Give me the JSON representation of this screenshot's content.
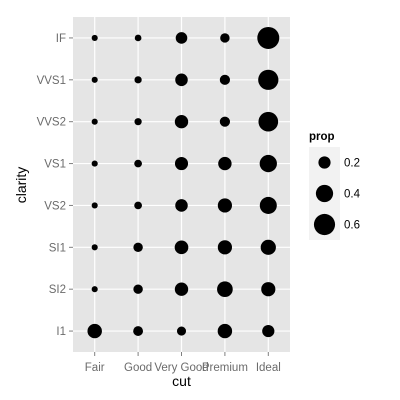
{
  "chart_data": {
    "type": "scatter",
    "x_label": "cut",
    "y_label": "clarity",
    "x_categories": [
      "Fair",
      "Good",
      "Very Good",
      "Premium",
      "Ideal"
    ],
    "y_categories": [
      "I1",
      "SI2",
      "SI1",
      "VS2",
      "VS1",
      "VVS2",
      "VVS1",
      "IF"
    ],
    "size_variable": "prop",
    "grid": true,
    "legend": {
      "title": "prop",
      "placement": "right",
      "entries": [
        {
          "label": "0.2",
          "value": 0.2
        },
        {
          "label": "0.4",
          "value": 0.4
        },
        {
          "label": "0.6",
          "value": 0.6
        }
      ]
    },
    "points": [
      {
        "cut": "Fair",
        "clarity": "IF",
        "prop": 0.05
      },
      {
        "cut": "Good",
        "clarity": "IF",
        "prop": 0.06
      },
      {
        "cut": "Very Good",
        "clarity": "IF",
        "prop": 0.18
      },
      {
        "cut": "Premium",
        "clarity": "IF",
        "prop": 0.12
      },
      {
        "cut": "Ideal",
        "clarity": "IF",
        "prop": 0.65
      },
      {
        "cut": "Fair",
        "clarity": "VVS1",
        "prop": 0.05
      },
      {
        "cut": "Good",
        "clarity": "VVS1",
        "prop": 0.07
      },
      {
        "cut": "Very Good",
        "clarity": "VVS1",
        "prop": 0.21
      },
      {
        "cut": "Premium",
        "clarity": "VVS1",
        "prop": 0.14
      },
      {
        "cut": "Ideal",
        "clarity": "VVS1",
        "prop": 0.55
      },
      {
        "cut": "Fair",
        "clarity": "VVS2",
        "prop": 0.05
      },
      {
        "cut": "Good",
        "clarity": "VVS2",
        "prop": 0.07
      },
      {
        "cut": "Very Good",
        "clarity": "VVS2",
        "prop": 0.24
      },
      {
        "cut": "Premium",
        "clarity": "VVS2",
        "prop": 0.14
      },
      {
        "cut": "Ideal",
        "clarity": "VVS2",
        "prop": 0.52
      },
      {
        "cut": "Fair",
        "clarity": "VS1",
        "prop": 0.05
      },
      {
        "cut": "Good",
        "clarity": "VS1",
        "prop": 0.08
      },
      {
        "cut": "Very Good",
        "clarity": "VS1",
        "prop": 0.23
      },
      {
        "cut": "Premium",
        "clarity": "VS1",
        "prop": 0.24
      },
      {
        "cut": "Ideal",
        "clarity": "VS1",
        "prop": 0.4
      },
      {
        "cut": "Fair",
        "clarity": "VS2",
        "prop": 0.05
      },
      {
        "cut": "Good",
        "clarity": "VS2",
        "prop": 0.08
      },
      {
        "cut": "Very Good",
        "clarity": "VS2",
        "prop": 0.21
      },
      {
        "cut": "Premium",
        "clarity": "VS2",
        "prop": 0.27
      },
      {
        "cut": "Ideal",
        "clarity": "VS2",
        "prop": 0.39
      },
      {
        "cut": "Fair",
        "clarity": "SI1",
        "prop": 0.05
      },
      {
        "cut": "Good",
        "clarity": "SI1",
        "prop": 0.12
      },
      {
        "cut": "Very Good",
        "clarity": "SI1",
        "prop": 0.25
      },
      {
        "cut": "Premium",
        "clarity": "SI1",
        "prop": 0.27
      },
      {
        "cut": "Ideal",
        "clarity": "SI1",
        "prop": 0.31
      },
      {
        "cut": "Fair",
        "clarity": "SI2",
        "prop": 0.05
      },
      {
        "cut": "Good",
        "clarity": "SI2",
        "prop": 0.12
      },
      {
        "cut": "Very Good",
        "clarity": "SI2",
        "prop": 0.24
      },
      {
        "cut": "Premium",
        "clarity": "SI2",
        "prop": 0.33
      },
      {
        "cut": "Ideal",
        "clarity": "SI2",
        "prop": 0.27
      },
      {
        "cut": "Fair",
        "clarity": "I1",
        "prop": 0.28
      },
      {
        "cut": "Good",
        "clarity": "I1",
        "prop": 0.13
      },
      {
        "cut": "Very Good",
        "clarity": "I1",
        "prop": 0.11
      },
      {
        "cut": "Premium",
        "clarity": "I1",
        "prop": 0.28
      },
      {
        "cut": "Ideal",
        "clarity": "I1",
        "prop": 0.2
      }
    ]
  }
}
